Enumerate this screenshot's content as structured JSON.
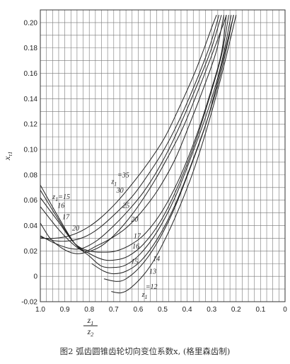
{
  "caption": "图2 弧齿圆锥齿轮切向变位系数x, (格里森齿制)",
  "chart_data": {
    "type": "line",
    "title": "",
    "ylabel": "x",
    "ylabel_sub": "τ1",
    "xlabel_num": "z",
    "xlabel_num_sub": "1",
    "xlabel_den": "z",
    "xlabel_den_sub": "2",
    "xlim": [
      1.0,
      0.0
    ],
    "ylim": [
      -0.02,
      0.21
    ],
    "grid": true,
    "x_ticks": [
      1.0,
      0.9,
      0.8,
      0.7,
      0.6,
      0.5,
      0.4,
      0.3,
      0.2,
      0.1,
      0
    ],
    "x_tick_labels": [
      "1.0",
      "0.9",
      "0.8",
      "0.7",
      "0.6",
      "0.5",
      "0.4",
      "0.3",
      "0.2",
      "0.1",
      "0"
    ],
    "y_ticks": [
      -0.02,
      0,
      0.02,
      0.04,
      0.06,
      0.08,
      0.1,
      0.12,
      0.14,
      0.16,
      0.18,
      0.2
    ],
    "y_tick_labels": [
      "-0.02",
      "0",
      "0.02",
      "0.04",
      "0.06",
      "0.08",
      "0.10",
      "0.12",
      "0.14",
      "0.16",
      "0.18",
      "0.20"
    ],
    "series": [
      {
        "name": "z1=12",
        "label": "=12",
        "label_anchor": "left",
        "label_pos": [
          0.57,
          -0.01
        ],
        "points": [
          [
            0.71,
            -0.012
          ],
          [
            0.67,
            -0.013
          ],
          [
            0.63,
            -0.009
          ],
          [
            0.57,
            0.003
          ],
          [
            0.52,
            0.018
          ],
          [
            0.45,
            0.046
          ],
          [
            0.38,
            0.08
          ],
          [
            0.32,
            0.116
          ],
          [
            0.26,
            0.158
          ],
          [
            0.2,
            0.206
          ]
        ]
      },
      {
        "name": "z1=13",
        "label": "13",
        "label_anchor": "left",
        "label_pos": [
          0.555,
          0.002
        ],
        "points": [
          [
            0.74,
            -0.002
          ],
          [
            0.69,
            -0.004
          ],
          [
            0.65,
            -0.002
          ],
          [
            0.59,
            0.008
          ],
          [
            0.53,
            0.024
          ],
          [
            0.46,
            0.05
          ],
          [
            0.39,
            0.084
          ],
          [
            0.32,
            0.122
          ],
          [
            0.27,
            0.158
          ],
          [
            0.21,
            0.206
          ]
        ]
      },
      {
        "name": "z1=14",
        "label": "14",
        "label_anchor": "left",
        "label_pos": [
          0.54,
          0.012
        ],
        "points": [
          [
            0.79,
            0.01
          ],
          [
            0.74,
            0.004
          ],
          [
            0.7,
            0.002
          ],
          [
            0.65,
            0.004
          ],
          [
            0.59,
            0.012
          ],
          [
            0.52,
            0.03
          ],
          [
            0.45,
            0.056
          ],
          [
            0.38,
            0.09
          ],
          [
            0.31,
            0.128
          ],
          [
            0.26,
            0.162
          ],
          [
            0.21,
            0.206
          ]
        ]
      },
      {
        "name": "z1=15",
        "label": "15",
        "label_anchor": "right",
        "label_pos": [
          0.6,
          0.01
        ],
        "points": [
          [
            1.0,
            0.072
          ],
          [
            0.93,
            0.048
          ],
          [
            0.86,
            0.026
          ],
          [
            0.8,
            0.016
          ],
          [
            0.75,
            0.008
          ],
          [
            0.7,
            0.007
          ],
          [
            0.65,
            0.009
          ],
          [
            0.59,
            0.018
          ],
          [
            0.52,
            0.036
          ],
          [
            0.45,
            0.062
          ],
          [
            0.38,
            0.096
          ],
          [
            0.31,
            0.134
          ],
          [
            0.26,
            0.168
          ],
          [
            0.22,
            0.206
          ]
        ]
      },
      {
        "name": "z1=16",
        "label": "16",
        "label_anchor": "right",
        "label_pos": [
          0.595,
          0.022
        ],
        "points": [
          [
            1.0,
            0.068
          ],
          [
            0.93,
            0.046
          ],
          [
            0.86,
            0.026
          ],
          [
            0.8,
            0.018
          ],
          [
            0.74,
            0.013
          ],
          [
            0.69,
            0.013
          ],
          [
            0.64,
            0.016
          ],
          [
            0.58,
            0.025
          ],
          [
            0.51,
            0.043
          ],
          [
            0.44,
            0.07
          ],
          [
            0.37,
            0.104
          ],
          [
            0.31,
            0.14
          ],
          [
            0.26,
            0.174
          ],
          [
            0.23,
            0.206
          ]
        ]
      },
      {
        "name": "z1=17",
        "label": "17",
        "label_anchor": "right",
        "label_pos": [
          0.59,
          0.03
        ],
        "points": [
          [
            1.0,
            0.062
          ],
          [
            0.93,
            0.044
          ],
          [
            0.86,
            0.026
          ],
          [
            0.8,
            0.02
          ],
          [
            0.74,
            0.019
          ],
          [
            0.69,
            0.02
          ],
          [
            0.63,
            0.025
          ],
          [
            0.57,
            0.034
          ],
          [
            0.5,
            0.052
          ],
          [
            0.43,
            0.078
          ],
          [
            0.36,
            0.112
          ],
          [
            0.3,
            0.148
          ],
          [
            0.26,
            0.176
          ],
          [
            0.24,
            0.206
          ]
        ]
      },
      {
        "name": "z1=20",
        "label": "20",
        "label_anchor": "right",
        "label_pos": [
          0.6,
          0.043
        ],
        "points": [
          [
            1.0,
            0.055
          ],
          [
            0.93,
            0.038
          ],
          [
            0.87,
            0.026
          ],
          [
            0.82,
            0.02
          ],
          [
            0.77,
            0.024
          ],
          [
            0.71,
            0.03
          ],
          [
            0.65,
            0.038
          ],
          [
            0.59,
            0.05
          ],
          [
            0.52,
            0.068
          ],
          [
            0.45,
            0.092
          ],
          [
            0.39,
            0.12
          ],
          [
            0.33,
            0.15
          ],
          [
            0.28,
            0.178
          ],
          [
            0.25,
            0.206
          ]
        ]
      },
      {
        "name": "z1=25",
        "label": "25",
        "label_anchor": "right",
        "label_pos": [
          0.635,
          0.054
        ],
        "points": [
          [
            1.0,
            0.032
          ],
          [
            0.94,
            0.026
          ],
          [
            0.88,
            0.022
          ],
          [
            0.83,
            0.022
          ],
          [
            0.77,
            0.028
          ],
          [
            0.71,
            0.038
          ],
          [
            0.64,
            0.052
          ],
          [
            0.58,
            0.066
          ],
          [
            0.52,
            0.084
          ],
          [
            0.46,
            0.106
          ],
          [
            0.4,
            0.132
          ],
          [
            0.34,
            0.16
          ],
          [
            0.3,
            0.18
          ],
          [
            0.26,
            0.206
          ]
        ]
      },
      {
        "name": "z1=30",
        "label": "30",
        "label_anchor": "right",
        "label_pos": [
          0.66,
          0.066
        ],
        "points": [
          [
            1.0,
            0.031
          ],
          [
            0.94,
            0.028
          ],
          [
            0.88,
            0.028
          ],
          [
            0.82,
            0.031
          ],
          [
            0.76,
            0.038
          ],
          [
            0.69,
            0.05
          ],
          [
            0.62,
            0.064
          ],
          [
            0.56,
            0.08
          ],
          [
            0.5,
            0.098
          ],
          [
            0.44,
            0.12
          ],
          [
            0.38,
            0.146
          ],
          [
            0.33,
            0.17
          ],
          [
            0.3,
            0.186
          ],
          [
            0.27,
            0.206
          ]
        ]
      },
      {
        "name": "z1=35",
        "label": "=35",
        "label_anchor": "left",
        "label_pos": [
          0.685,
          0.078
        ],
        "points": [
          [
            1.0,
            0.03
          ],
          [
            0.94,
            0.03
          ],
          [
            0.88,
            0.032
          ],
          [
            0.82,
            0.037
          ],
          [
            0.76,
            0.045
          ],
          [
            0.69,
            0.058
          ],
          [
            0.62,
            0.074
          ],
          [
            0.55,
            0.092
          ],
          [
            0.49,
            0.11
          ],
          [
            0.43,
            0.134
          ],
          [
            0.37,
            0.16
          ],
          [
            0.33,
            0.18
          ],
          [
            0.3,
            0.196
          ],
          [
            0.28,
            0.206
          ]
        ]
      },
      {
        "name": "z1=?",
        "label": "",
        "label_anchor": "left",
        "label_pos": [
          0,
          0
        ],
        "points": [
          [
            1.0,
            0.042
          ],
          [
            0.96,
            0.03
          ],
          [
            0.91,
            0.022
          ],
          [
            0.86,
            0.018
          ],
          [
            0.81,
            0.019
          ],
          [
            0.75,
            0.024
          ],
          [
            0.69,
            0.034
          ],
          [
            0.62,
            0.05
          ],
          [
            0.55,
            0.07
          ],
          [
            0.49,
            0.09
          ],
          [
            0.42,
            0.116
          ],
          [
            0.36,
            0.144
          ],
          [
            0.3,
            0.174
          ],
          [
            0.25,
            0.2
          ],
          [
            0.24,
            0.206
          ]
        ]
      }
    ],
    "label_extras": [
      {
        "text": "z",
        "sub": "1",
        "suffix": "=15",
        "pos": [
          0.95,
          0.061
        ]
      },
      {
        "text": "z",
        "sub": "1",
        "suffix": "",
        "pos": [
          0.71,
          0.073
        ]
      },
      {
        "text": "z",
        "sub": "1",
        "suffix": "",
        "pos": [
          0.585,
          -0.016
        ]
      }
    ],
    "left_labels": [
      {
        "text": "16",
        "pos": [
          0.93,
          0.054
        ]
      },
      {
        "text": "17",
        "pos": [
          0.91,
          0.045
        ]
      },
      {
        "text": "20",
        "pos": [
          0.87,
          0.036
        ]
      }
    ]
  }
}
